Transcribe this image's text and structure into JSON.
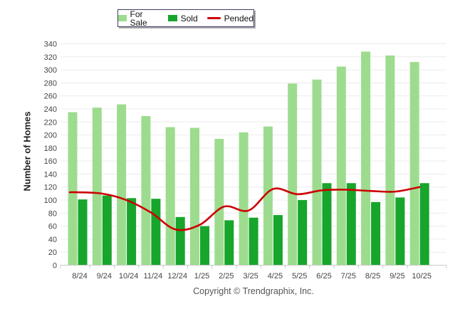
{
  "legend": {
    "items": [
      {
        "label": "For Sale",
        "swatch": "box",
        "color": "#9DDC8E"
      },
      {
        "label": "Sold",
        "swatch": "box",
        "color": "#17A52B"
      },
      {
        "label": "Pended",
        "swatch": "line",
        "color": "#CC0000"
      }
    ]
  },
  "chart_data": {
    "type": "bar",
    "categories": [
      "8/24",
      "9/24",
      "10/24",
      "11/24",
      "12/24",
      "1/25",
      "2/25",
      "3/25",
      "4/25",
      "5/25",
      "6/25",
      "7/25",
      "8/25",
      "9/25",
      "10/25"
    ],
    "series": [
      {
        "name": "For Sale",
        "type": "bar",
        "color": "#9DDC8E",
        "values": [
          235,
          242,
          247,
          229,
          212,
          211,
          194,
          204,
          213,
          279,
          285,
          305,
          328,
          322,
          312
        ]
      },
      {
        "name": "Sold",
        "type": "bar",
        "color": "#17A52B",
        "values": [
          101,
          107,
          103,
          102,
          74,
          60,
          69,
          73,
          77,
          100,
          126,
          126,
          97,
          104,
          126
        ]
      },
      {
        "name": "Pended",
        "type": "line",
        "color": "#CC0000",
        "values": [
          112,
          110,
          100,
          81,
          55,
          62,
          90,
          84,
          117,
          109,
          115,
          116,
          114,
          113,
          120
        ]
      }
    ],
    "title": "",
    "xlabel": "",
    "ylabel": "Number of Homes",
    "ylim": [
      0,
      340
    ],
    "ytick_step": 20,
    "grid": true,
    "legend_position": "top-center",
    "colors": {
      "gridline": "#ececec",
      "axis": "#c9c9c9",
      "tick_label": "#444444"
    }
  },
  "footer": {
    "copyright": "Copyright © Trendgraphix, Inc."
  }
}
